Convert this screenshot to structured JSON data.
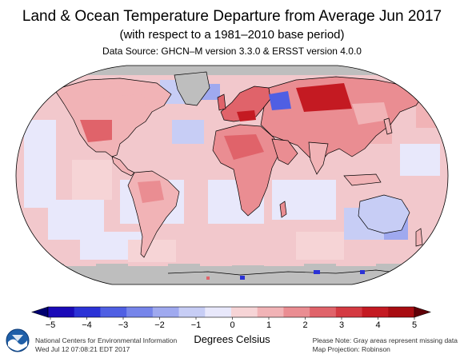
{
  "header": {
    "title": "Land & Ocean Temperature Departure from Average Jun 2017",
    "subtitle": "(with respect to a 1981–2010 base period)",
    "source": "Data Source: GHCN–M version 3.3.0 & ERSST version 4.0.0"
  },
  "map": {
    "projection": "Robinson",
    "ocean_fill": "#f2c8cc",
    "missing_color": "#bebebe",
    "land_outline": "#000000"
  },
  "colorbar": {
    "label": "Degrees Celsius",
    "ticks": [
      "−5",
      "−4",
      "−3",
      "−2",
      "−1",
      "0",
      "1",
      "2",
      "3",
      "4",
      "5"
    ],
    "colors": [
      "#1a0ab8",
      "#2b32d6",
      "#4f5fe3",
      "#7685ea",
      "#9fa9ef",
      "#c7cdf5",
      "#e8e8fb",
      "#f6d4d6",
      "#f1b3b6",
      "#ea8d92",
      "#e0636a",
      "#d43a42",
      "#c41a22",
      "#a80c12"
    ],
    "extend_low": "#000070",
    "extend_high": "#600008"
  },
  "footer": {
    "credit_line1": "National Centers for Environmental Information",
    "credit_line2": "Wed Jul 12 07:08:21 EDT 2017",
    "note_line1": "Please Note: Gray areas represent missing data",
    "note_line2": "Map Projection: Robinson",
    "logo": "noaa-logo"
  }
}
